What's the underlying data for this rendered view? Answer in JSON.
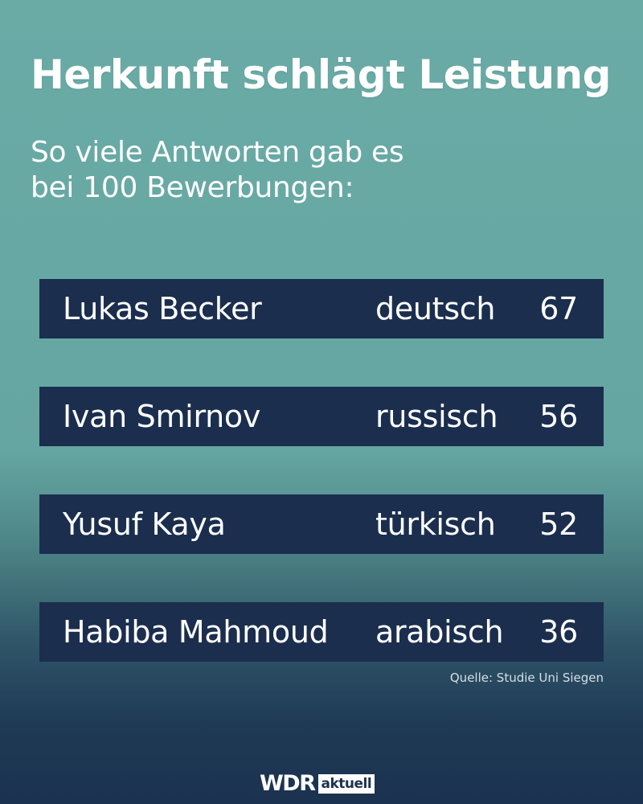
{
  "title": "Herkunft schlägt Leistung",
  "subtitle": {
    "line1": "So viele Antworten gab es",
    "line2": "bei 100 Bewerbungen:"
  },
  "chart_data": {
    "type": "table",
    "title": "Herkunft schlägt Leistung",
    "subtitle": "So viele Antworten gab es bei 100 Bewerbungen:",
    "rows": [
      {
        "name": "Lukas Becker",
        "origin": "deutsch",
        "value": 67
      },
      {
        "name": "Ivan Smirnov",
        "origin": "russisch",
        "value": 56
      },
      {
        "name": "Yusuf Kaya",
        "origin": "türkisch",
        "value": 52
      },
      {
        "name": "Habiba Mahmoud",
        "origin": "arabisch",
        "value": 36
      }
    ]
  },
  "source": "Quelle: Studie Uni Siegen",
  "logo": {
    "brand": "WDR",
    "badge": "aktuell"
  },
  "colors": {
    "background_top": "#6aaba6",
    "background_bottom": "#1b3250",
    "row_background": "#1b2e4e",
    "text": "#ffffff"
  }
}
